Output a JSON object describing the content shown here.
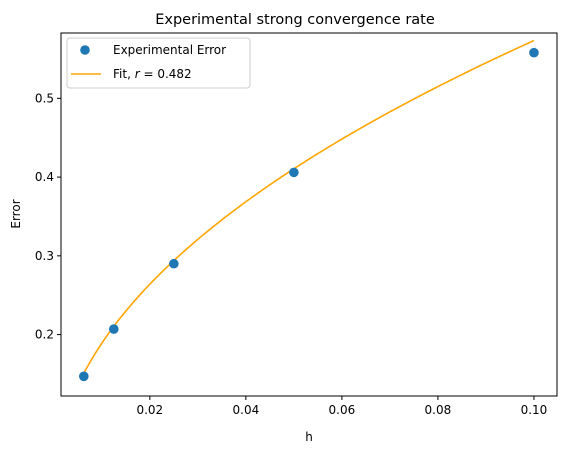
{
  "chart_data": {
    "type": "scatter",
    "title": "Experimental strong convergence rate",
    "xlabel": "h",
    "ylabel": "Error",
    "xlim": [
      0.0015,
      0.1048
    ],
    "ylim": [
      0.122,
      0.583
    ],
    "xticks": [
      0.02,
      0.04,
      0.06,
      0.08,
      0.1
    ],
    "xtick_labels": [
      "0.02",
      "0.04",
      "0.06",
      "0.08",
      "0.10"
    ],
    "yticks": [
      0.2,
      0.3,
      0.4,
      0.5
    ],
    "ytick_labels": [
      "0.2",
      "0.3",
      "0.4",
      "0.5"
    ],
    "grid": false,
    "legend_position": "top-left",
    "series": [
      {
        "name": "Experimental Error",
        "kind": "scatter",
        "color": "#1f77b4",
        "x": [
          0.00625,
          0.0125,
          0.025,
          0.05,
          0.1
        ],
        "y": [
          0.147,
          0.207,
          0.29,
          0.406,
          0.558
        ]
      },
      {
        "name": "Fit, r = 0.482",
        "kind": "line",
        "color": "#ffa500",
        "model": "C * h^r",
        "C": 1.7397,
        "r": 0.482,
        "x_range": [
          0.00625,
          0.1
        ]
      }
    ],
    "legend": [
      {
        "label": "Experimental Error",
        "marker": "circle"
      },
      {
        "label": "Fit, ",
        "italic": "r",
        "suffix": " = 0.482",
        "marker": "line"
      }
    ]
  }
}
